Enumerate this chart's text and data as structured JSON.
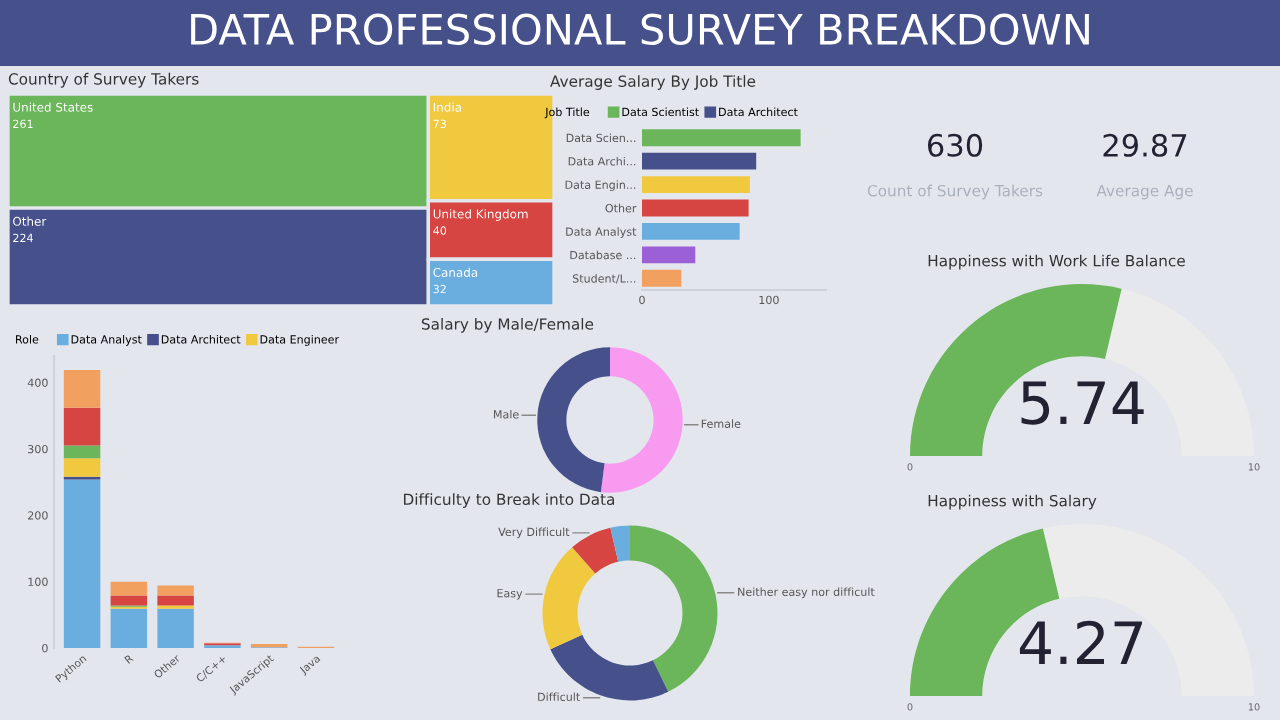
{
  "chart_data": [
    {
      "type": "other",
      "title": "DATA PROFESSIONAL SURVEY BREAKDOWN"
    },
    {
      "type": "other",
      "title": "Country of Survey Takers",
      "categories": [
        "United States",
        "Other",
        "India",
        "United Kingdom",
        "Canada"
      ],
      "values": [
        261,
        224,
        73,
        40,
        32
      ],
      "data_labels": true,
      "colors": [
        "#6bb55a",
        "#46508a",
        "#f0c93e",
        "#d64541",
        "#6aaee0"
      ]
    },
    {
      "type": "bar",
      "orientation": "horizontal",
      "title": "Average Salary By Job Title",
      "legend_title": "Job Title",
      "legend": "top left",
      "categories": [
        "Data Scien...",
        "Data Archi...",
        "Data Engin...",
        "Other",
        "Data Analyst",
        "Database ...",
        "Student/L..."
      ],
      "xlim": [
        0,
        145
      ],
      "xticks": [
        0,
        100
      ],
      "series": [
        {
          "name": "Data Scientist",
          "color": "#6bb55a",
          "values": [
            125,
            null,
            null,
            null,
            null,
            null,
            null
          ]
        },
        {
          "name": "Data Architect",
          "color": "#46508a",
          "values": [
            null,
            90,
            null,
            null,
            null,
            null,
            null
          ]
        },
        {
          "color": "#f0c93e",
          "values": [
            null,
            null,
            85,
            null,
            null,
            null,
            null
          ]
        },
        {
          "color": "#d64541",
          "values": [
            null,
            null,
            null,
            84,
            null,
            null,
            null
          ]
        },
        {
          "color": "#6aaee0",
          "values": [
            null,
            null,
            null,
            null,
            77,
            null,
            null
          ]
        },
        {
          "color": "#9b5fd6",
          "values": [
            null,
            null,
            null,
            null,
            null,
            42,
            null
          ]
        },
        {
          "color": "#f2a060",
          "values": [
            null,
            null,
            null,
            null,
            null,
            null,
            31
          ]
        }
      ]
    },
    {
      "type": "other",
      "categories": [
        "Count of Survey Takers",
        "Average Age"
      ],
      "values": [
        630,
        29.87
      ],
      "data_labels": true
    },
    {
      "type": "other",
      "title": "Happiness with Work Life Balance",
      "values": [
        5.74
      ],
      "data_labels": true,
      "annotations": [
        "0",
        "10"
      ],
      "color": "#6bb55a"
    },
    {
      "type": "bar",
      "stacked": true,
      "legend_title": "Role",
      "legend": "top left",
      "categories": [
        "Python",
        "R",
        "Other",
        "C/C++",
        "JavaScript",
        "Java"
      ],
      "ylim": [
        0,
        440
      ],
      "yticks": [
        0,
        100,
        200,
        300,
        400
      ],
      "series": [
        {
          "name": "Data Analyst",
          "color": "#6aaee0",
          "values": [
            254,
            59,
            59,
            4,
            1,
            0
          ]
        },
        {
          "name": "Data Architect",
          "color": "#46508a",
          "values": [
            4,
            null,
            null,
            0,
            0,
            0
          ]
        },
        {
          "name": "Data Engineer",
          "color": "#f0c93e",
          "values": [
            28,
            3,
            5,
            0,
            0,
            0
          ]
        },
        {
          "color": "#6bb55a",
          "values": [
            19,
            2,
            0,
            0,
            0,
            0
          ]
        },
        {
          "color": "#d64541",
          "values": [
            57,
            15,
            15,
            3,
            0,
            0
          ]
        },
        {
          "color": "#f2a060",
          "values": [
            57,
            21,
            15,
            1,
            5,
            2
          ]
        }
      ]
    },
    {
      "type": "donut",
      "title": "Salary by Male/Female",
      "categories": [
        "Female",
        "Male"
      ],
      "values": [
        52,
        48
      ],
      "colors": [
        "#f79af0",
        "#46508a"
      ]
    },
    {
      "type": "donut",
      "title": "Difficulty to Break into Data",
      "categories": [
        "Neither easy nor difficult",
        "Difficult",
        "Easy",
        "Very Difficult",
        null
      ],
      "values": [
        42.8,
        25.4,
        20.3,
        7.9,
        3.6
      ],
      "colors": [
        "#6bb55a",
        "#46508a",
        "#f0c93e",
        "#d64541",
        "#6aaee0"
      ]
    },
    {
      "type": "other",
      "title": "Happiness with Salary",
      "values": [
        4.27
      ],
      "data_labels": true,
      "annotations": [
        "0",
        "10"
      ],
      "color": "#6bb55a"
    }
  ]
}
